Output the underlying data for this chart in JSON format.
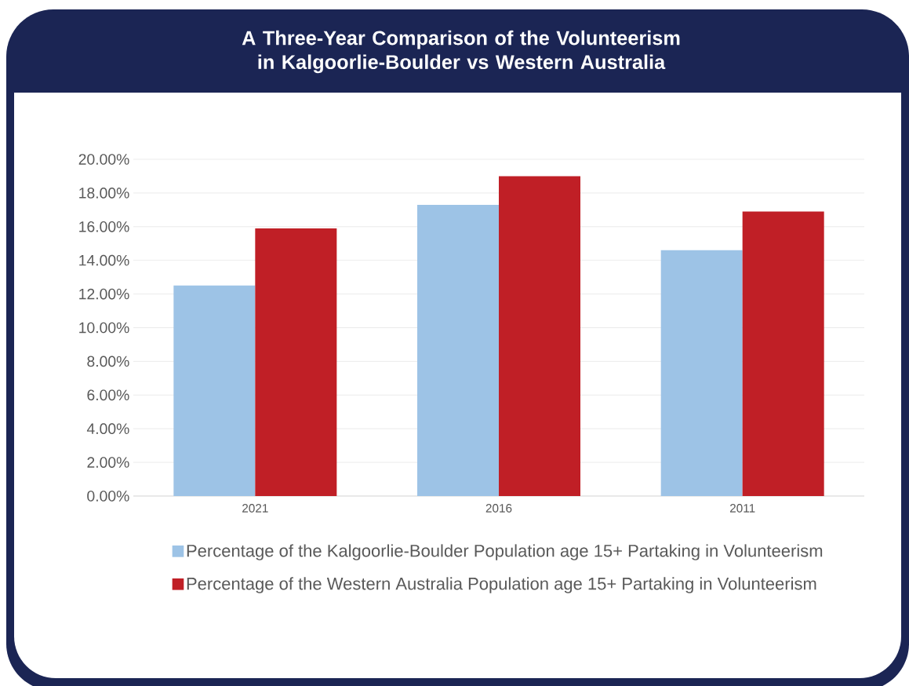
{
  "chart_data": {
    "type": "bar",
    "title": "A Three-Year Comparison of the Volunteerism in Kalgoorlie-Boulder vs Western Australia",
    "categories": [
      "2021",
      "2016",
      "2011"
    ],
    "series": [
      {
        "name": "Percentage of the Kalgoorlie-Boulder Population age 15+ Partaking in Volunteerism",
        "color": "#9dc3e6",
        "values": [
          12.5,
          17.3,
          14.6
        ]
      },
      {
        "name": "Percentage of the Western Australia Population age 15+ Partaking in Volunteerism",
        "color": "#c01f26",
        "values": [
          15.9,
          19.0,
          16.9
        ]
      }
    ],
    "ylim": [
      0,
      20
    ],
    "yticks": [
      {
        "value": 0,
        "label": "0.00%"
      },
      {
        "value": 2,
        "label": "2.00%"
      },
      {
        "value": 4,
        "label": "4.00%"
      },
      {
        "value": 6,
        "label": "6.00%"
      },
      {
        "value": 8,
        "label": "8.00%"
      },
      {
        "value": 10,
        "label": "10.00%"
      },
      {
        "value": 12,
        "label": "12.00%"
      },
      {
        "value": 14,
        "label": "14.00%"
      },
      {
        "value": 16,
        "label": "16.00%"
      },
      {
        "value": 18,
        "label": "18.00%"
      },
      {
        "value": 20,
        "label": "20.00%"
      }
    ],
    "grid": "y",
    "legend": "bottom"
  }
}
